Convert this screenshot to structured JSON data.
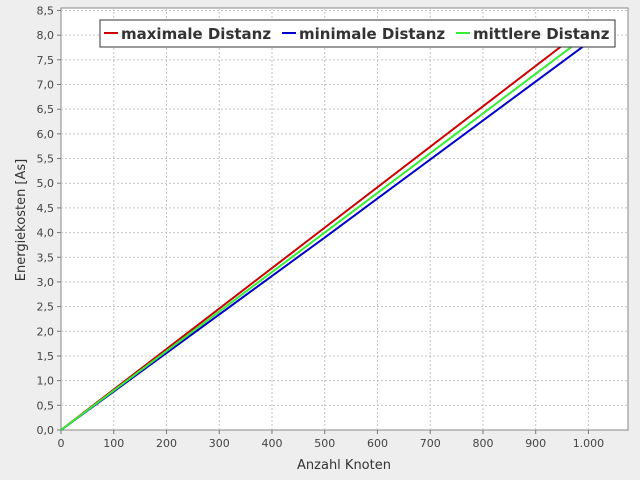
{
  "chart_data": {
    "type": "line",
    "title": "",
    "xlabel": "Anzahl Knoten",
    "ylabel": "Energiekosten [As]",
    "xlim": [
      0,
      1075
    ],
    "ylim": [
      0,
      8.55
    ],
    "x_ticks": [
      0,
      100,
      200,
      300,
      400,
      500,
      600,
      700,
      800,
      900,
      1000
    ],
    "x_tick_labels": [
      "0",
      "100",
      "200",
      "300",
      "400",
      "500",
      "600",
      "700",
      "800",
      "900",
      "1.000"
    ],
    "y_ticks": [
      0,
      0.5,
      1,
      1.5,
      2,
      2.5,
      3,
      3.5,
      4,
      4.5,
      5,
      5.5,
      6,
      6.5,
      7,
      7.5,
      8,
      8.5
    ],
    "y_tick_labels": [
      "0,0",
      "0,5",
      "1,0",
      "1,5",
      "2,0",
      "2,5",
      "3,0",
      "3,5",
      "4,0",
      "4,5",
      "5,0",
      "5,5",
      "6,0",
      "6,5",
      "7,0",
      "7,5",
      "8,0",
      "8,5"
    ],
    "grid": true,
    "legend_position": "top-right",
    "series": [
      {
        "name": "maximale Distanz",
        "color": "#cc0000",
        "x": [
          0,
          500,
          970
        ],
        "y": [
          0,
          4.1,
          7.95
        ]
      },
      {
        "name": "minimale Distanz",
        "color": "#0000cc",
        "x": [
          0,
          500,
          1000
        ],
        "y": [
          0,
          3.9,
          7.85
        ]
      },
      {
        "name": "mittlere Distanz",
        "color": "#33ee33",
        "x": [
          0,
          500,
          985
        ],
        "y": [
          0,
          4.0,
          7.9
        ]
      }
    ]
  }
}
